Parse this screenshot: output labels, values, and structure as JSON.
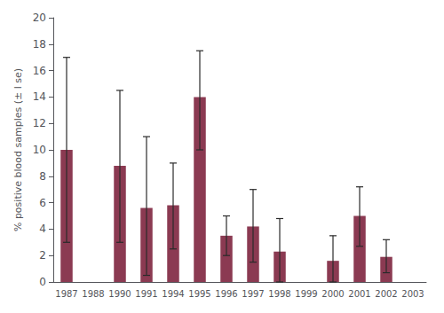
{
  "chart_data": {
    "type": "bar",
    "categories": [
      "1987",
      "1988",
      "1990",
      "1991",
      "1994",
      "1995",
      "1996",
      "1997",
      "1998",
      "1999",
      "2000",
      "2001",
      "2002",
      "2003"
    ],
    "values": [
      10.0,
      null,
      8.8,
      5.6,
      5.8,
      14.0,
      3.5,
      4.2,
      2.3,
      null,
      1.6,
      5.0,
      1.9,
      null
    ],
    "err_upper": [
      17.0,
      null,
      14.5,
      11.0,
      9.0,
      17.5,
      5.0,
      7.0,
      4.8,
      null,
      3.5,
      7.2,
      3.2,
      null
    ],
    "err_lower": [
      3.0,
      null,
      3.0,
      0.5,
      2.5,
      10.0,
      2.0,
      1.5,
      0.0,
      null,
      0.0,
      2.7,
      0.7,
      null
    ],
    "ylabel": "% positive blood samples (± l se)",
    "color": "#8B3A52",
    "ylim": [
      0,
      20
    ],
    "yticks": [
      0,
      2,
      4,
      6,
      8,
      10,
      12,
      14,
      16,
      18,
      20
    ],
    "grid": false
  }
}
